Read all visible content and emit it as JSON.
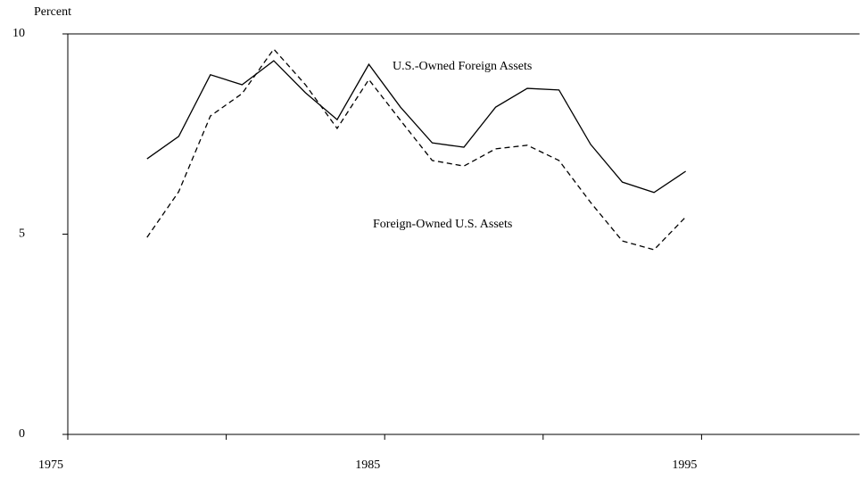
{
  "chart_data": {
    "type": "line",
    "y_axis_label": "Percent",
    "x": [
      1977.5,
      1978.5,
      1979.5,
      1980.5,
      1981.5,
      1982.5,
      1983.5,
      1984.5,
      1985.5,
      1986.5,
      1987.5,
      1988.5,
      1989.5,
      1990.5,
      1991.5,
      1992.5,
      1993.5,
      1994.5
    ],
    "series": [
      {
        "name": "U.S.-Owned Foreign Assets",
        "color": "#000000",
        "dash": "solid",
        "values": [
          6.88,
          7.44,
          8.98,
          8.73,
          9.33,
          8.53,
          7.86,
          9.24,
          8.17,
          7.28,
          7.17,
          8.17,
          8.64,
          8.6,
          7.24,
          6.3,
          6.04,
          6.57
        ]
      },
      {
        "name": "Foreign-Owned U.S. Assets",
        "color": "#000000",
        "dash": "dashed",
        "values": [
          4.92,
          6.06,
          7.95,
          8.51,
          9.62,
          8.73,
          7.64,
          8.86,
          7.84,
          6.84,
          6.7,
          7.13,
          7.22,
          6.84,
          5.79,
          4.83,
          4.61,
          5.43
        ]
      }
    ],
    "xlim": [
      1975,
      2000
    ],
    "xticks": [
      1975,
      1985,
      1995
    ],
    "xminor_ticks": [
      1980,
      1990
    ],
    "ylim": [
      0,
      10
    ],
    "yticks": [
      0,
      5,
      10
    ],
    "grid": false
  }
}
